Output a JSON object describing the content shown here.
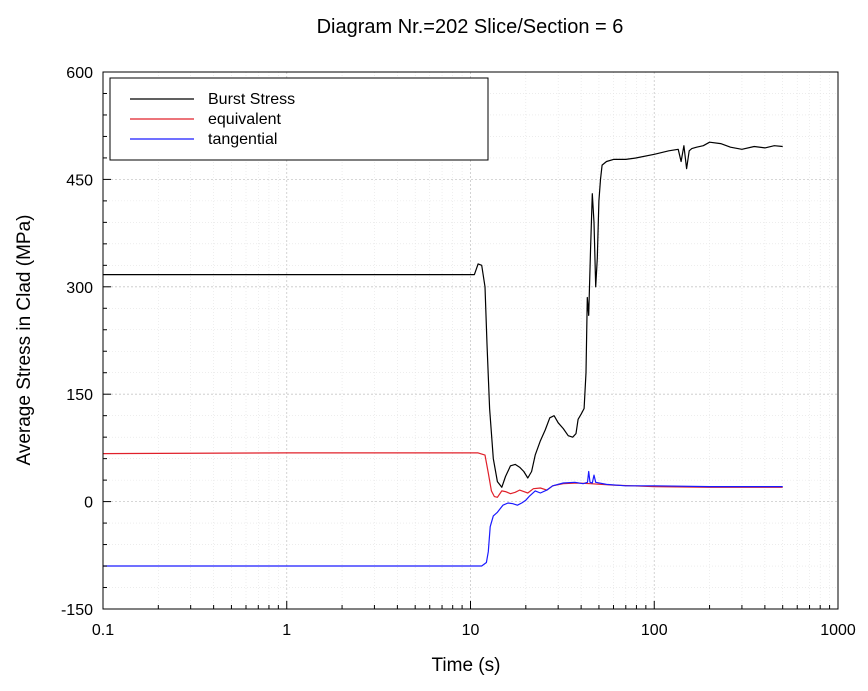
{
  "chart_data": {
    "type": "line",
    "title": "Diagram Nr.=202 Slice/Section = 6",
    "xlabel": "Time (s)",
    "ylabel": "Average Stress in Clad (MPa)",
    "xscale": "log",
    "xlim": [
      0.1,
      1000
    ],
    "ylim": [
      -150,
      600
    ],
    "xticks": [
      "0.1",
      "1",
      "10",
      "100",
      "1000"
    ],
    "yticks": [
      "-150",
      "0",
      "150",
      "300",
      "450",
      "600"
    ],
    "grid": true,
    "legend_position": "top-left",
    "series": [
      {
        "name": "Burst Stress",
        "color": "#000000",
        "points": [
          [
            0.1,
            317
          ],
          [
            10.5,
            317
          ],
          [
            11.0,
            332
          ],
          [
            11.5,
            330
          ],
          [
            12.0,
            300
          ],
          [
            12.3,
            220
          ],
          [
            12.7,
            130
          ],
          [
            13.3,
            60
          ],
          [
            14.0,
            28
          ],
          [
            14.8,
            20
          ],
          [
            15.5,
            35
          ],
          [
            16.5,
            50
          ],
          [
            17.5,
            52
          ],
          [
            18.5,
            48
          ],
          [
            19.5,
            42
          ],
          [
            20.5,
            33
          ],
          [
            21.5,
            42
          ],
          [
            22.5,
            65
          ],
          [
            24,
            85
          ],
          [
            25.5,
            100
          ],
          [
            27,
            117
          ],
          [
            28.5,
            120
          ],
          [
            30,
            110
          ],
          [
            32,
            102
          ],
          [
            34,
            92
          ],
          [
            36,
            90
          ],
          [
            37.5,
            95
          ],
          [
            38.5,
            115
          ],
          [
            40,
            122
          ],
          [
            41.5,
            130
          ],
          [
            42.5,
            180
          ],
          [
            43.2,
            285
          ],
          [
            44,
            260
          ],
          [
            45,
            350
          ],
          [
            46,
            430
          ],
          [
            47,
            390
          ],
          [
            48,
            300
          ],
          [
            49,
            340
          ],
          [
            50,
            420
          ],
          [
            51,
            450
          ],
          [
            52,
            470
          ],
          [
            55,
            475
          ],
          [
            60,
            478
          ],
          [
            70,
            478
          ],
          [
            80,
            480
          ],
          [
            100,
            485
          ],
          [
            120,
            490
          ],
          [
            135,
            492
          ],
          [
            140,
            475
          ],
          [
            145,
            497
          ],
          [
            150,
            465
          ],
          [
            155,
            490
          ],
          [
            160,
            493
          ],
          [
            170,
            495
          ],
          [
            185,
            497
          ],
          [
            200,
            502
          ],
          [
            230,
            500
          ],
          [
            260,
            495
          ],
          [
            300,
            492
          ],
          [
            350,
            496
          ],
          [
            400,
            494
          ],
          [
            450,
            497
          ],
          [
            500,
            496
          ]
        ]
      },
      {
        "name": "equivalent",
        "color": "#e0202a",
        "points": [
          [
            0.1,
            67
          ],
          [
            1,
            68
          ],
          [
            5,
            68
          ],
          [
            11.0,
            68
          ],
          [
            12.0,
            65
          ],
          [
            12.5,
            40
          ],
          [
            13.0,
            15
          ],
          [
            13.5,
            7
          ],
          [
            14.0,
            6
          ],
          [
            14.8,
            15
          ],
          [
            15.5,
            14
          ],
          [
            16.5,
            11
          ],
          [
            17.5,
            13
          ],
          [
            18.5,
            16
          ],
          [
            19.5,
            14
          ],
          [
            20.5,
            12
          ],
          [
            22,
            18
          ],
          [
            24,
            19
          ],
          [
            26,
            16
          ],
          [
            28,
            22
          ],
          [
            32,
            25
          ],
          [
            38,
            26
          ],
          [
            45,
            25
          ],
          [
            60,
            23
          ],
          [
            100,
            21
          ],
          [
            200,
            20
          ],
          [
            500,
            20
          ]
        ]
      },
      {
        "name": "tangential",
        "color": "#1a1aff",
        "points": [
          [
            0.1,
            -90
          ],
          [
            1,
            -90
          ],
          [
            5,
            -90
          ],
          [
            11.5,
            -90
          ],
          [
            12.2,
            -85
          ],
          [
            12.5,
            -70
          ],
          [
            12.8,
            -35
          ],
          [
            13.3,
            -20
          ],
          [
            14.0,
            -15
          ],
          [
            15.0,
            -5
          ],
          [
            16.0,
            -2
          ],
          [
            17.0,
            -3
          ],
          [
            18.0,
            -5
          ],
          [
            19.0,
            -2
          ],
          [
            20.0,
            2
          ],
          [
            21.0,
            8
          ],
          [
            22.5,
            15
          ],
          [
            24,
            12
          ],
          [
            26,
            16
          ],
          [
            28,
            22
          ],
          [
            32,
            26
          ],
          [
            37,
            27
          ],
          [
            41,
            25
          ],
          [
            43.3,
            27
          ],
          [
            44,
            42
          ],
          [
            44.7,
            27
          ],
          [
            46,
            26
          ],
          [
            47,
            37
          ],
          [
            48,
            27
          ],
          [
            55,
            24
          ],
          [
            70,
            22
          ],
          [
            100,
            22
          ],
          [
            200,
            21
          ],
          [
            500,
            21
          ]
        ]
      }
    ]
  }
}
